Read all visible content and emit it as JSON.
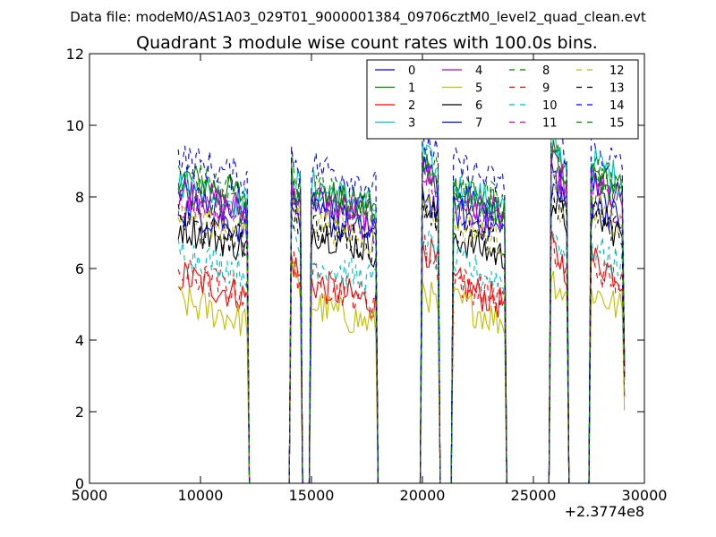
{
  "header": {
    "suptitle": "Data file: modeM0/AS1A03_029T01_9000001384_09706cztM0_level2_quad_clean.evt"
  },
  "chart_data": {
    "type": "line",
    "title": "Quadrant 3 module wise count rates with 100.0s bins.",
    "xlabel": "",
    "ylabel": "",
    "x_offset_label": "+2.3774e8",
    "xlim": [
      5000,
      30000
    ],
    "ylim": [
      0,
      12
    ],
    "xticks": [
      5000,
      10000,
      15000,
      20000,
      25000,
      30000
    ],
    "yticks": [
      0,
      2,
      4,
      6,
      8,
      10,
      12
    ],
    "legend_position": "top-right",
    "legend_columns": 4,
    "grid": false,
    "x_start": 9000,
    "x_step": 100,
    "x_end": 29100,
    "observation_windows": [
      [
        9000,
        12100
      ],
      [
        14100,
        14500
      ],
      [
        15000,
        17900
      ],
      [
        20000,
        20700
      ],
      [
        21400,
        23700
      ],
      [
        25800,
        26500
      ],
      [
        27600,
        29100
      ]
    ],
    "segments_level_note": "Per-module mean count rate in each good-time window (counts/s); zero between windows",
    "series": [
      {
        "name": "0",
        "color": "#0000ff",
        "dashed": false,
        "levels": [
          7.8,
          8.0,
          7.6,
          8.6,
          7.7,
          8.4,
          8.1
        ]
      },
      {
        "name": "1",
        "color": "#008000",
        "dashed": false,
        "levels": [
          8.3,
          8.2,
          7.9,
          8.8,
          7.9,
          8.9,
          8.4
        ]
      },
      {
        "name": "2",
        "color": "#ff0000",
        "dashed": false,
        "levels": [
          5.5,
          6.0,
          5.3,
          6.4,
          5.3,
          6.3,
          6.0
        ]
      },
      {
        "name": "3",
        "color": "#00bfbf",
        "dashed": false,
        "levels": [
          8.1,
          8.5,
          8.0,
          8.9,
          8.0,
          9.2,
          8.7
        ]
      },
      {
        "name": "4",
        "color": "#bf00bf",
        "dashed": false,
        "levels": [
          7.9,
          8.1,
          7.7,
          8.5,
          7.7,
          8.6,
          8.1
        ]
      },
      {
        "name": "5",
        "color": "#bfbf00",
        "dashed": false,
        "levels": [
          4.8,
          5.6,
          4.7,
          5.2,
          4.8,
          5.5,
          5.1
        ]
      },
      {
        "name": "6",
        "color": "#000000",
        "dashed": false,
        "levels": [
          6.9,
          7.3,
          6.8,
          7.6,
          6.6,
          7.6,
          7.2
        ]
      },
      {
        "name": "7",
        "color": "#0000ff",
        "dashed": false,
        "levels": [
          7.4,
          7.7,
          7.2,
          7.9,
          7.3,
          8.0,
          7.6
        ]
      },
      {
        "name": "8",
        "color": "#008000",
        "dashed": true,
        "levels": [
          8.4,
          8.6,
          8.0,
          8.9,
          8.1,
          9.0,
          8.6
        ]
      },
      {
        "name": "9",
        "color": "#ff0000",
        "dashed": true,
        "levels": [
          5.6,
          6.0,
          5.4,
          6.3,
          5.4,
          6.2,
          5.8
        ]
      },
      {
        "name": "10",
        "color": "#00bfbf",
        "dashed": true,
        "levels": [
          6.2,
          6.7,
          5.9,
          6.6,
          5.9,
          6.8,
          6.3
        ]
      },
      {
        "name": "11",
        "color": "#bf00bf",
        "dashed": true,
        "levels": [
          7.6,
          7.9,
          7.4,
          8.3,
          7.4,
          8.4,
          7.9
        ]
      },
      {
        "name": "12",
        "color": "#bfbf00",
        "dashed": true,
        "levels": [
          7.3,
          7.6,
          7.1,
          7.8,
          7.0,
          7.8,
          7.4
        ]
      },
      {
        "name": "13",
        "color": "#000000",
        "dashed": true,
        "levels": [
          7.0,
          7.4,
          6.9,
          7.7,
          6.8,
          7.7,
          7.3
        ]
      },
      {
        "name": "14",
        "color": "#0000ff",
        "dashed": true,
        "levels": [
          8.8,
          9.0,
          8.6,
          9.4,
          8.6,
          9.6,
          9.1
        ]
      },
      {
        "name": "15",
        "color": "#008000",
        "dashed": true,
        "levels": [
          8.0,
          8.3,
          7.8,
          8.6,
          7.8,
          8.7,
          8.3
        ]
      }
    ]
  }
}
